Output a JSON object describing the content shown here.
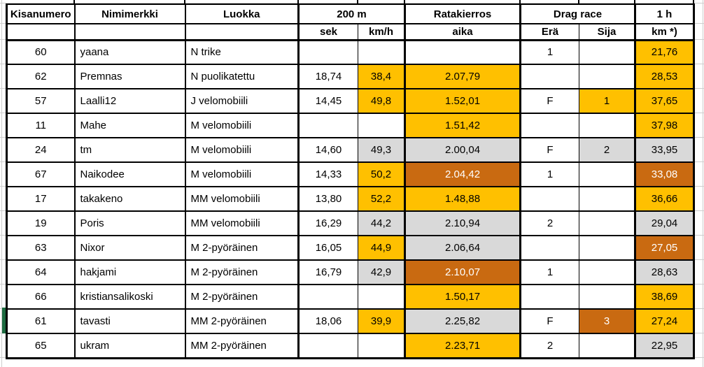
{
  "colors": {
    "highlight_orange": "#FFC000",
    "highlight_dark_orange": "#C96A11",
    "highlight_gray": "#D9D9D9",
    "selection_green": "#1E6C41",
    "table_border": "#000000",
    "sheet_gridline": "#CDCDCD"
  },
  "table": {
    "header_groups": [
      {
        "label": "Kisanumero",
        "span": 1
      },
      {
        "label": "Nimimerkki",
        "span": 1
      },
      {
        "label": "Luokka",
        "span": 1
      },
      {
        "label": "200 m",
        "span": 2
      },
      {
        "label": "Ratakierros",
        "span": 1
      },
      {
        "label": "Drag race",
        "span": 2
      },
      {
        "label": "1 h",
        "span": 1
      }
    ],
    "subheaders": [
      "",
      "",
      "",
      "sek",
      "km/h",
      "aika",
      "Erä",
      "Sija",
      "km *)"
    ],
    "column_keys": [
      "kisanumero",
      "nimimerkki",
      "luokka",
      "sek",
      "kmh",
      "aika",
      "era",
      "sija",
      "1h"
    ],
    "rows": [
      {
        "cells": [
          {
            "v": "60"
          },
          {
            "v": "yaana"
          },
          {
            "v": "N trike"
          },
          {
            "v": ""
          },
          {
            "v": ""
          },
          {
            "v": ""
          },
          {
            "v": "1"
          },
          {
            "v": ""
          },
          {
            "v": "21,76",
            "bg": "orange"
          }
        ]
      },
      {
        "cells": [
          {
            "v": "62"
          },
          {
            "v": "Premnas"
          },
          {
            "v": "N puolikatettu"
          },
          {
            "v": "18,74"
          },
          {
            "v": "38,4",
            "bg": "orange"
          },
          {
            "v": "2.07,79",
            "bg": "orange"
          },
          {
            "v": ""
          },
          {
            "v": ""
          },
          {
            "v": "28,53",
            "bg": "orange"
          }
        ]
      },
      {
        "cells": [
          {
            "v": "57"
          },
          {
            "v": "Laalli12"
          },
          {
            "v": "J velomobiili"
          },
          {
            "v": "14,45"
          },
          {
            "v": "49,8",
            "bg": "orange"
          },
          {
            "v": "1.52,01",
            "bg": "orange"
          },
          {
            "v": "F"
          },
          {
            "v": "1",
            "bg": "orange"
          },
          {
            "v": "37,65",
            "bg": "orange"
          }
        ]
      },
      {
        "cells": [
          {
            "v": "11"
          },
          {
            "v": "Mahe"
          },
          {
            "v": "M velomobiili"
          },
          {
            "v": ""
          },
          {
            "v": ""
          },
          {
            "v": "1.51,42",
            "bg": "orange"
          },
          {
            "v": ""
          },
          {
            "v": ""
          },
          {
            "v": "37,98",
            "bg": "orange"
          }
        ]
      },
      {
        "cells": [
          {
            "v": "24"
          },
          {
            "v": "tm"
          },
          {
            "v": "M velomobiili"
          },
          {
            "v": "14,60"
          },
          {
            "v": "49,3",
            "bg": "gray"
          },
          {
            "v": "2.00,04",
            "bg": "gray"
          },
          {
            "v": "F"
          },
          {
            "v": "2",
            "bg": "gray"
          },
          {
            "v": "33,95",
            "bg": "gray"
          }
        ]
      },
      {
        "cells": [
          {
            "v": "67"
          },
          {
            "v": "Naikodee"
          },
          {
            "v": "M velomobiili"
          },
          {
            "v": "14,33"
          },
          {
            "v": "50,2",
            "bg": "orange"
          },
          {
            "v": "2.04,42",
            "bg": "dark"
          },
          {
            "v": "1"
          },
          {
            "v": ""
          },
          {
            "v": "33,08",
            "bg": "dark"
          }
        ]
      },
      {
        "cells": [
          {
            "v": "17"
          },
          {
            "v": "takakeno"
          },
          {
            "v": "MM velomobiili"
          },
          {
            "v": "13,80"
          },
          {
            "v": "52,2",
            "bg": "orange"
          },
          {
            "v": "1.48,88",
            "bg": "orange"
          },
          {
            "v": ""
          },
          {
            "v": ""
          },
          {
            "v": "36,66",
            "bg": "orange"
          }
        ]
      },
      {
        "cells": [
          {
            "v": "19"
          },
          {
            "v": "Poris"
          },
          {
            "v": "MM velomobiili"
          },
          {
            "v": "16,29"
          },
          {
            "v": "44,2",
            "bg": "gray"
          },
          {
            "v": "2.10,94",
            "bg": "gray"
          },
          {
            "v": "2"
          },
          {
            "v": ""
          },
          {
            "v": "29,04",
            "bg": "gray"
          }
        ]
      },
      {
        "cells": [
          {
            "v": "63"
          },
          {
            "v": "Nixor"
          },
          {
            "v": "M 2-pyöräinen"
          },
          {
            "v": "16,05"
          },
          {
            "v": "44,9",
            "bg": "orange"
          },
          {
            "v": "2.06,64",
            "bg": "gray"
          },
          {
            "v": ""
          },
          {
            "v": ""
          },
          {
            "v": "27,05",
            "bg": "dark"
          }
        ]
      },
      {
        "cells": [
          {
            "v": "64"
          },
          {
            "v": "hakjami"
          },
          {
            "v": "M 2-pyöräinen"
          },
          {
            "v": "16,79"
          },
          {
            "v": "42,9",
            "bg": "gray"
          },
          {
            "v": "2.10,07",
            "bg": "dark"
          },
          {
            "v": "1"
          },
          {
            "v": ""
          },
          {
            "v": "28,63",
            "bg": "gray"
          }
        ]
      },
      {
        "cells": [
          {
            "v": "66"
          },
          {
            "v": "kristiansalikoski"
          },
          {
            "v": "M 2-pyöräinen"
          },
          {
            "v": ""
          },
          {
            "v": ""
          },
          {
            "v": "1.50,17",
            "bg": "orange"
          },
          {
            "v": ""
          },
          {
            "v": ""
          },
          {
            "v": "38,69",
            "bg": "orange"
          }
        ]
      },
      {
        "cells": [
          {
            "v": "61"
          },
          {
            "v": "tavasti"
          },
          {
            "v": "MM 2-pyöräinen"
          },
          {
            "v": "18,06"
          },
          {
            "v": "39,9",
            "bg": "orange"
          },
          {
            "v": "2.25,82",
            "bg": "gray"
          },
          {
            "v": "F"
          },
          {
            "v": "3",
            "bg": "dark"
          },
          {
            "v": "27,24",
            "bg": "orange"
          }
        ],
        "selected": true
      },
      {
        "cells": [
          {
            "v": "65"
          },
          {
            "v": "ukram"
          },
          {
            "v": "MM 2-pyöräinen"
          },
          {
            "v": ""
          },
          {
            "v": ""
          },
          {
            "v": "2.23,71",
            "bg": "orange"
          },
          {
            "v": "2"
          },
          {
            "v": ""
          },
          {
            "v": "22,95",
            "bg": "gray"
          }
        ]
      }
    ]
  }
}
